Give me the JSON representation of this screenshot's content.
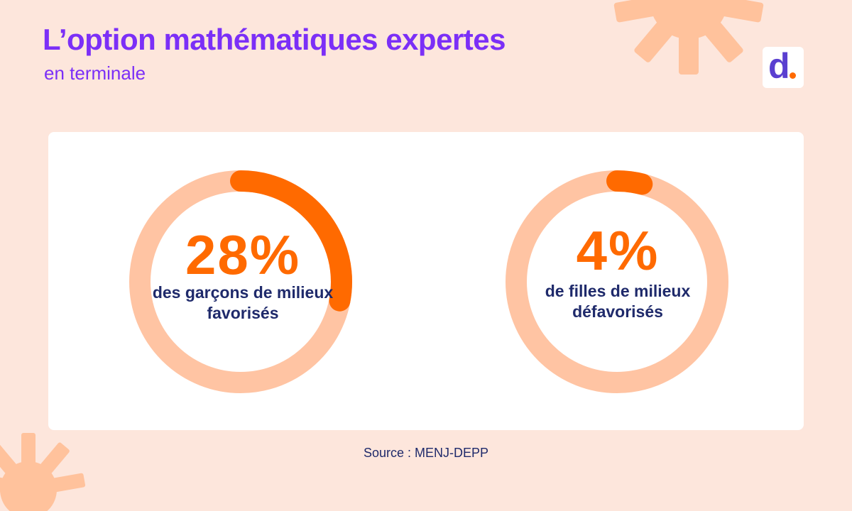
{
  "header": {
    "title": "L’option mathématiques expertes",
    "subtitle": "en terminale"
  },
  "logo": {
    "letter": "d"
  },
  "colors": {
    "background": "#fde6dc",
    "accent": "#ff6a00",
    "track": "#ffc4a3",
    "title": "#7b2ff7",
    "text": "#1f2a6b"
  },
  "chart_data": {
    "type": "donut",
    "items": [
      {
        "value": 28,
        "label": "28%",
        "caption": "des garçons de milieux favorisés"
      },
      {
        "value": 4,
        "label": "4%",
        "caption": "de filles de milieux défavorisés"
      }
    ]
  },
  "source": "Source : MENJ-DEPP"
}
